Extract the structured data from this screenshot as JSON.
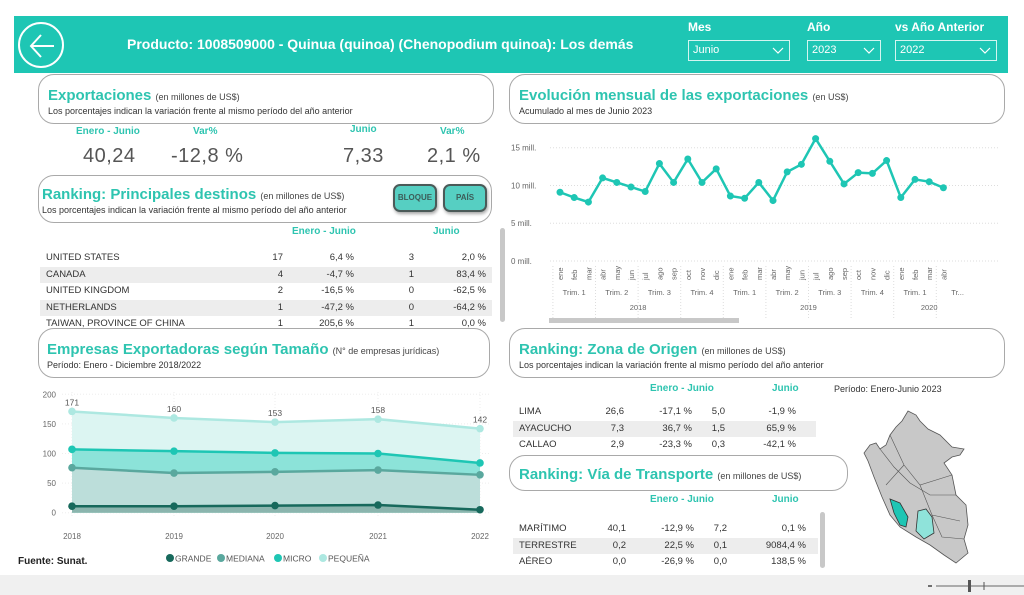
{
  "header": {
    "back_icon": "arrow-left-circle-icon",
    "title": "Producto: 1008509000 - Quinua (quinoa) (Chenopodium quinoa): Los demás",
    "filters": [
      {
        "label": "Mes",
        "value": "Junio"
      },
      {
        "label": "Año",
        "value": "2023"
      },
      {
        "label": "vs Año Anterior",
        "value": "2022"
      }
    ]
  },
  "exportaciones": {
    "title": "Exportaciones",
    "unit": "(en millones de US$)",
    "subtitle": "Los porcentajes indican la variación frente al mismo período del año anterior",
    "kpis": [
      {
        "label": "Enero - Junio",
        "value": "40,24"
      },
      {
        "label": "Var%",
        "value": "-12,8 %"
      },
      {
        "label": "Junio",
        "value": "7,33"
      },
      {
        "label": "Var%",
        "value": "2,1 %"
      }
    ]
  },
  "destinos": {
    "title": "Ranking: Principales destinos",
    "unit": "(en millones de US$)",
    "subtitle": "Los porcentajes indican la variación frente al mismo período del año anterior",
    "buttons": [
      "BLOQUE",
      "PAÍS"
    ],
    "col_headers": [
      "Enero - Junio",
      "Junio"
    ],
    "rows": [
      {
        "name": "UNITED STATES",
        "v1": "17",
        "p1": "6,4 %",
        "v2": "3",
        "p2": "2,0 %"
      },
      {
        "name": "CANADA",
        "v1": "4",
        "p1": "-4,7 %",
        "v2": "1",
        "p2": "83,4 %"
      },
      {
        "name": "UNITED KINGDOM",
        "v1": "2",
        "p1": "-16,5 %",
        "v2": "0",
        "p2": "-62,5 %"
      },
      {
        "name": "NETHERLANDS",
        "v1": "1",
        "p1": "-47,2 %",
        "v2": "0",
        "p2": "-64,2 %"
      },
      {
        "name": "TAIWAN, PROVINCE OF CHINA",
        "v1": "1",
        "p1": "205,6 %",
        "v2": "1",
        "p2": "0,0 %"
      }
    ]
  },
  "empresas": {
    "title": "Empresas Exportadoras según Tamaño",
    "unit": "(N° de empresas jurídicas)",
    "subtitle": "Período: Enero - Diciembre 2018/2022"
  },
  "evolucion": {
    "title": "Evolución mensual de las exportaciones",
    "unit": "(en US$)",
    "subtitle": "Acumulado al mes de Junio 2023"
  },
  "zona": {
    "title": "Ranking: Zona de Origen",
    "unit": "(en millones de US$)",
    "subtitle": "Los porcentajes indican la variación frente al mismo período del año anterior",
    "col_headers": [
      "Enero - Junio",
      "Junio"
    ],
    "period_label": "Período: Enero-Junio 2023",
    "rows": [
      {
        "name": "LIMA",
        "v1": "26,6",
        "p1": "-17,1 %",
        "v2": "5,0",
        "p2": "-1,9 %"
      },
      {
        "name": "AYACUCHO",
        "v1": "7,3",
        "p1": "36,7 %",
        "v2": "1,5",
        "p2": "65,9 %"
      },
      {
        "name": "CALLAO",
        "v1": "2,9",
        "p1": "-23,3 %",
        "v2": "0,3",
        "p2": "-42,1 %"
      }
    ],
    "map": {
      "highlighted": [
        "LIMA",
        "AYACUCHO"
      ],
      "colors": {
        "LIMA": "#1ec6b4",
        "AYACUCHO": "#8fe3da",
        "other": "#c8c8c8"
      }
    }
  },
  "transporte": {
    "title": "Ranking: Vía de Transporte",
    "unit": "(en millones de US$)",
    "col_headers": [
      "Enero - Junio",
      "Junio"
    ],
    "rows": [
      {
        "name": "MARÍTIMO",
        "v1": "40,1",
        "p1": "-12,9 %",
        "v2": "7,2",
        "p2": "0,1 %"
      },
      {
        "name": "TERRESTRE",
        "v1": "0,2",
        "p1": "22,5 %",
        "v2": "0,1",
        "p2": "9084,4 %"
      },
      {
        "name": "AÉREO",
        "v1": "0,0",
        "p1": "-26,9 %",
        "v2": "0,0",
        "p2": "138,5 %"
      }
    ]
  },
  "footer": {
    "source": "Fuente: Sunat."
  },
  "colors": {
    "accent": "#1ec6b4",
    "title": "#2ec4b0"
  },
  "chart_data": [
    {
      "type": "line",
      "title": "Evolución mensual de las exportaciones",
      "ylabel": "US$",
      "yticks": [
        "0 mill.",
        "5 mill.",
        "10 mill.",
        "15 mill."
      ],
      "ylim": [
        0,
        15
      ],
      "grid": true,
      "x": [
        "ene",
        "feb",
        "mar",
        "abr",
        "may",
        "jun",
        "jul",
        "ago",
        "sep",
        "oct",
        "nov",
        "dic",
        "ene",
        "feb",
        "mar",
        "abr",
        "may",
        "jun",
        "jul",
        "ago",
        "sep",
        "oct",
        "nov",
        "dic",
        "ene",
        "feb",
        "mar",
        "abr"
      ],
      "quarters": [
        {
          "label": "Trim. 1",
          "year": "2018"
        },
        {
          "label": "Trim. 2",
          "year": "2018"
        },
        {
          "label": "Trim. 3",
          "year": "2018"
        },
        {
          "label": "Trim. 4",
          "year": "2018"
        },
        {
          "label": "Trim. 1",
          "year": "2019"
        },
        {
          "label": "Trim. 2",
          "year": "2019"
        },
        {
          "label": "Trim. 3",
          "year": "2019"
        },
        {
          "label": "Trim. 4",
          "year": "2019"
        },
        {
          "label": "Trim. 1",
          "year": "2020"
        },
        {
          "label": "Tr...",
          "year": "2020"
        }
      ],
      "years": [
        "2018",
        "2019",
        "2020"
      ],
      "series": [
        {
          "name": "Exportaciones (mill. US$)",
          "color": "#1ec6b4",
          "values": [
            9.1,
            8.4,
            7.8,
            11.0,
            10.4,
            9.8,
            9.2,
            12.9,
            10.4,
            13.5,
            10.4,
            12.2,
            8.6,
            8.3,
            10.4,
            8.0,
            11.8,
            12.8,
            16.2,
            13.2,
            10.2,
            11.7,
            11.6,
            13.3,
            8.4,
            10.8,
            10.5,
            9.7
          ]
        }
      ]
    },
    {
      "type": "area",
      "stacked": true,
      "title": "Empresas Exportadoras según Tamaño",
      "categories": [
        "2018",
        "2019",
        "2020",
        "2021",
        "2022"
      ],
      "ylim": [
        0,
        200
      ],
      "yticks": [
        0,
        50,
        100,
        150,
        200
      ],
      "legend": "bottom",
      "totals": [
        171,
        160,
        153,
        158,
        142
      ],
      "series": [
        {
          "name": "GRANDE",
          "color": "#17695c",
          "values": [
            11,
            11,
            12,
            13,
            5
          ]
        },
        {
          "name": "MEDIANA",
          "color": "#5aa89e",
          "values": [
            65,
            56,
            57,
            59,
            59
          ]
        },
        {
          "name": "MICRO",
          "color": "#1ec6b4",
          "values": [
            31,
            37,
            32,
            28,
            20
          ]
        },
        {
          "name": "PEQUEÑA",
          "color": "#ade8e1",
          "values": [
            64,
            56,
            52,
            58,
            58
          ]
        }
      ]
    }
  ]
}
